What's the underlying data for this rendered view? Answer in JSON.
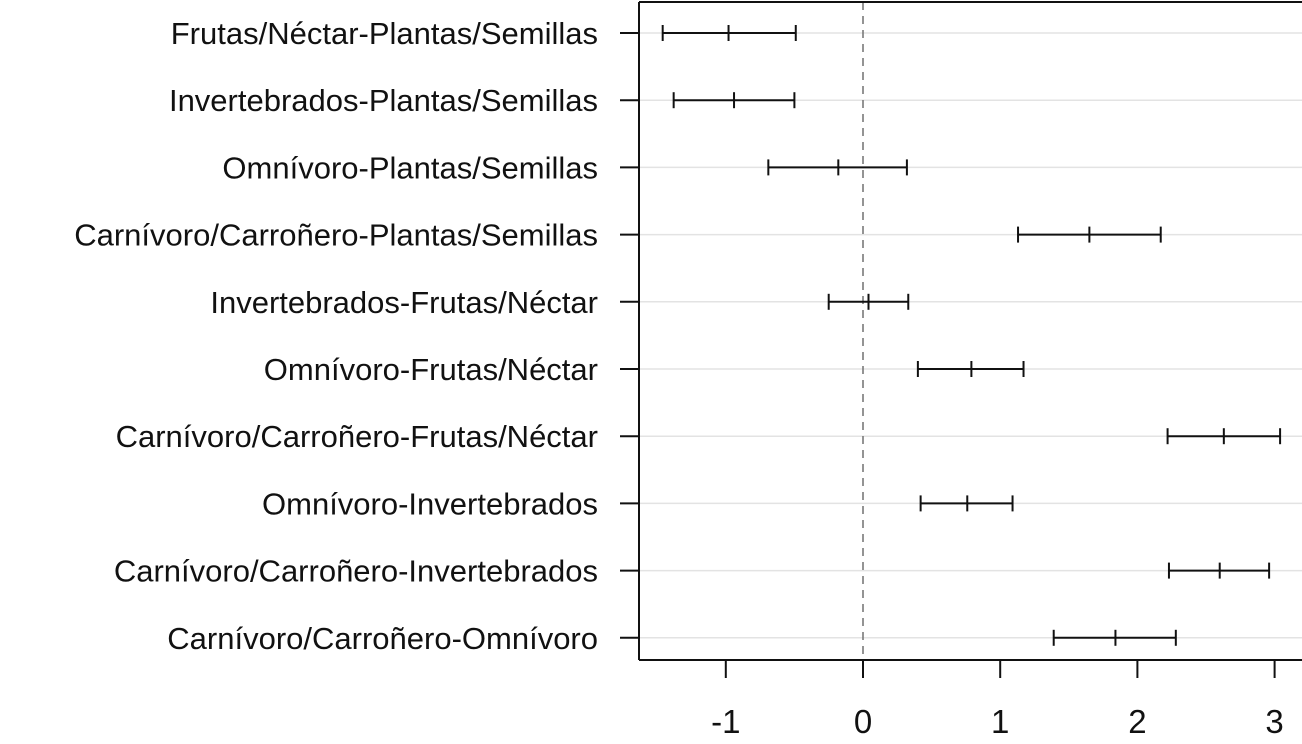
{
  "chart_data": {
    "type": "forest",
    "title": "",
    "xlabel": "",
    "ylabel": "",
    "xlim": [
      -1.65,
      3.2
    ],
    "x_ticks": [
      "-1",
      "0",
      "1",
      "2",
      "3"
    ],
    "x_tick_values": [
      -1,
      0,
      1,
      2,
      3
    ],
    "reference_line": 0,
    "grid": "horizontal",
    "categories": [
      "Frutas/Néctar-Plantas/Semillas",
      "Invertebrados-Plantas/Semillas",
      "Omnívoro-Plantas/Semillas",
      "Carnívoro/Carroñero-Plantas/Semillas",
      "Invertebrados-Frutas/Néctar",
      "Omnívoro-Frutas/Néctar",
      "Carnívoro/Carroñero-Frutas/Néctar",
      "Omnívoro-Invertebrados",
      "Carnívoro/Carroñero-Invertebrados",
      "Carnívoro/Carroñero-Omnívoro"
    ],
    "estimates": [
      {
        "center": -0.98,
        "lower": -1.46,
        "upper": -0.49
      },
      {
        "center": -0.94,
        "lower": -1.38,
        "upper": -0.5
      },
      {
        "center": -0.18,
        "lower": -0.69,
        "upper": 0.32
      },
      {
        "center": 1.65,
        "lower": 1.13,
        "upper": 2.17
      },
      {
        "center": 0.04,
        "lower": -0.25,
        "upper": 0.33
      },
      {
        "center": 0.79,
        "lower": 0.4,
        "upper": 1.17
      },
      {
        "center": 2.63,
        "lower": 2.22,
        "upper": 3.04
      },
      {
        "center": 0.76,
        "lower": 0.42,
        "upper": 1.09
      },
      {
        "center": 2.6,
        "lower": 2.23,
        "upper": 2.96
      },
      {
        "center": 1.84,
        "lower": 1.39,
        "upper": 2.28
      }
    ],
    "colors": {
      "marks": "#111111",
      "grid": "#e3e3e3",
      "reference": "#7a7a7a",
      "axis": "#111111"
    }
  }
}
